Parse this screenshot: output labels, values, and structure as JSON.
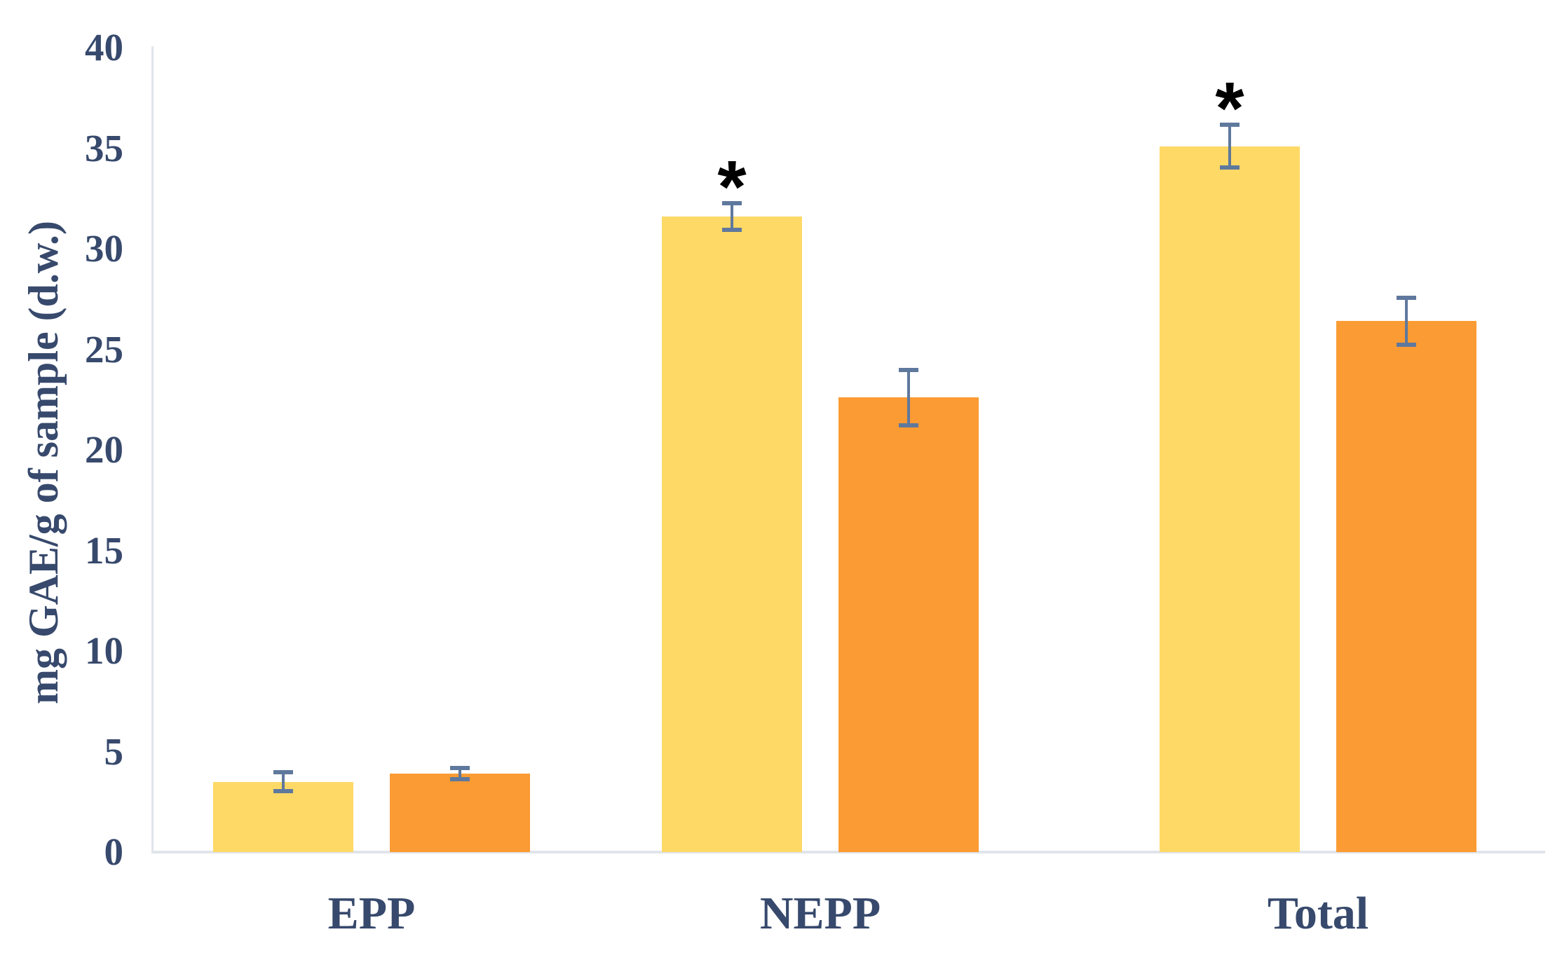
{
  "chart_data": {
    "type": "bar",
    "title": "",
    "categories": [
      "EPP",
      "NEPP",
      "Total"
    ],
    "series": [
      {
        "name": "yellow",
        "color": "#FFD966",
        "values": [
          3.5,
          31.6,
          35.1
        ],
        "errors": [
          0.5,
          0.7,
          1.1
        ],
        "significance": [
          "",
          "*",
          "*"
        ]
      },
      {
        "name": "orange",
        "color": "#FB9B33",
        "values": [
          3.9,
          22.6,
          26.4
        ],
        "errors": [
          0.3,
          1.4,
          1.2
        ],
        "significance": [
          "",
          "",
          ""
        ]
      }
    ],
    "xlabel": "",
    "ylabel": "mg GAE/g of sample (d.w.)",
    "ylim": [
      0,
      40
    ],
    "ytick_step": 5,
    "yticks": [
      0,
      5,
      10,
      15,
      20,
      25,
      30,
      35,
      40
    ],
    "grid": false,
    "legend": "none",
    "significance_marker": "*",
    "colors": {
      "error_bar": "#5F789D",
      "axis_line": "#E0E4EB",
      "text": "#37496C",
      "significance": "#000000"
    }
  }
}
